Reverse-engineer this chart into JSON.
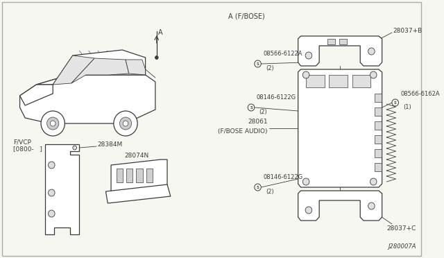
{
  "bg_color": "#f7f7f2",
  "fg_color": "#2a2a2a",
  "diagram_id": "J280007A",
  "section_A_label": "A (F/BOSE)",
  "fvcp_label": "F/VCP\n[0800-   ]",
  "part_28037B": "28037+B",
  "part_28037C": "28037+C",
  "part_28061_line1": "28061",
  "part_28061_line2": "(F/BOSE AUDIO)",
  "part_28384M": "28384M",
  "part_28074N": "28074N",
  "screw1_label": "08566-6122A",
  "screw1_qty": "(2)",
  "screw2_label": "08146-6122G",
  "screw2_qty": "(2)",
  "screw3_label": "08566-6162A",
  "screw3_qty": "(1)",
  "screw4_label": "08146-6122G",
  "screw4_qty": "(2)",
  "arrow_A": "A",
  "border_color": "#bbbbbb",
  "line_color": "#3a3a3a",
  "thin_line": 0.6,
  "med_line": 0.9,
  "thick_line": 1.2
}
